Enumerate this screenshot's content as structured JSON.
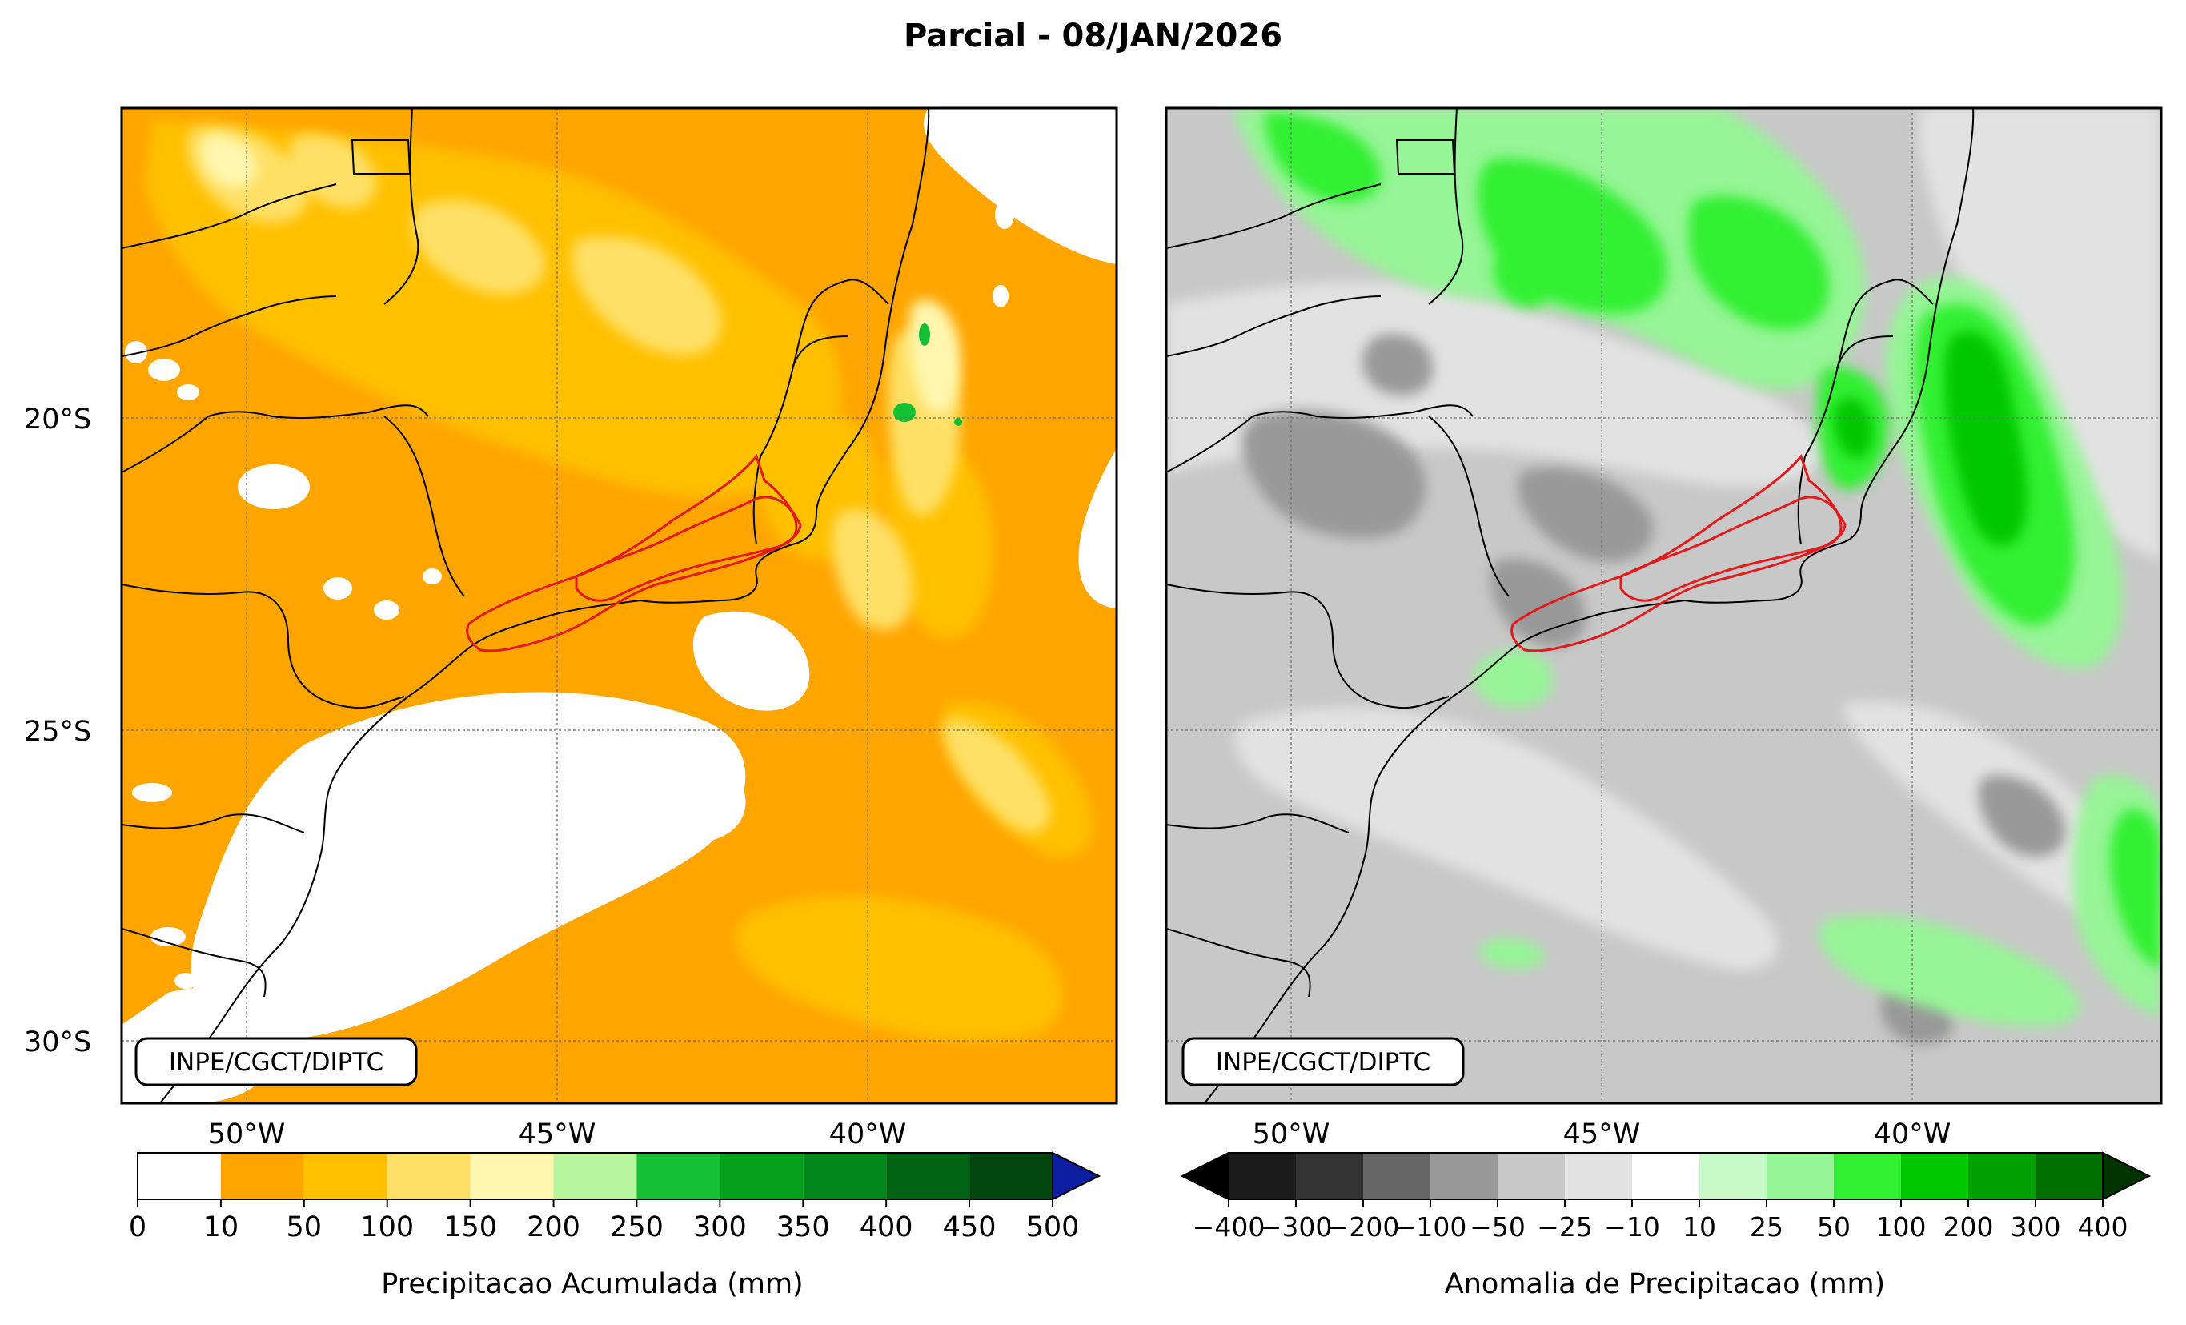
{
  "title": "Parcial - 08/JAN/2026",
  "credit": "INPE/CGCT/DIPTC",
  "latitude_labels": [
    "20°S",
    "25°S",
    "30°S"
  ],
  "longitude_labels": [
    "50°W",
    "45°W",
    "40°W"
  ],
  "left_map": {
    "colorbar": {
      "label": "Precipitacao Acumulada (mm)",
      "ticks": [
        "0",
        "10",
        "50",
        "100",
        "150",
        "200",
        "250",
        "300",
        "350",
        "400",
        "450",
        "500"
      ],
      "colors": [
        "#ffffff",
        "#ffa500",
        "#ffc000",
        "#ffe066",
        "#fff7b0",
        "#b8f79f",
        "#14c034",
        "#03a11b",
        "#02861a",
        "#016314",
        "#01450e"
      ],
      "extend_color": "#0b1fa0"
    },
    "colors": {
      "base": "#ffa500",
      "light": "#ffc000",
      "lighter": "#ffe066",
      "pale": "#fff7b0",
      "green": "#14c034",
      "dry": "#ffffff"
    }
  },
  "right_map": {
    "colorbar": {
      "label": "Anomalia de Precipitacao (mm)",
      "ticks": [
        "−400",
        "−300",
        "−200",
        "−100",
        "−50",
        "−25",
        "−10",
        "10",
        "25",
        "50",
        "100",
        "200",
        "300",
        "400"
      ],
      "colors": [
        "#1c1c1c",
        "#333333",
        "#666666",
        "#999999",
        "#c8c8c8",
        "#e2e2e2",
        "#ffffff",
        "#c8fac8",
        "#96f596",
        "#32f032",
        "#00c800",
        "#00a000",
        "#007000"
      ],
      "extend_low_color": "#000000",
      "extend_high_color": "#003300"
    },
    "colors": {
      "base": "#c8c8c8",
      "light": "#e2e2e2",
      "dark": "#999999",
      "green": "#32f032",
      "lightgreen": "#96f596",
      "darkgreen": "#00c800"
    }
  },
  "region_outline_color": "#e31a1c"
}
